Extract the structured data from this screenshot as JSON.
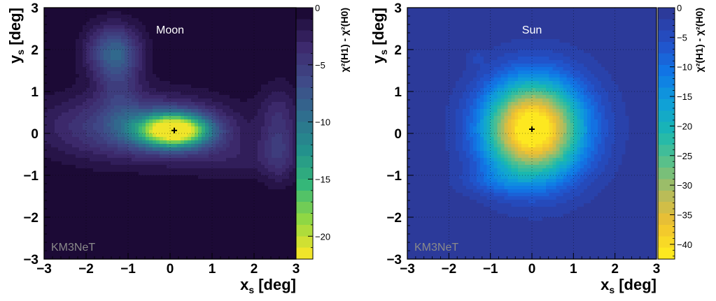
{
  "chart_data": [
    {
      "type": "heatmap",
      "title": "Moon",
      "watermark": "KM3NeT",
      "xlabel": "x",
      "xlabel_sub": "s",
      "xlabel_unit": "[deg]",
      "ylabel": "y",
      "ylabel_sub": "s",
      "ylabel_unit": "[deg]",
      "xlim": [
        -3,
        3
      ],
      "ylim": [
        -3,
        3
      ],
      "xticks": [
        "−3",
        "−2",
        "−1",
        "0",
        "1",
        "2",
        "3"
      ],
      "yticks": [
        "−3",
        "−2",
        "−1",
        "0",
        "1",
        "2",
        "3"
      ],
      "grid": true,
      "z_label": "χ²(H1) - χ²(H0)",
      "zlim": [
        -22,
        0
      ],
      "z_ticks": [
        "0",
        "−5",
        "−10",
        "−15",
        "−20"
      ],
      "colormap": [
        "#1c0a36",
        "#3d2a6e",
        "#3f4a88",
        "#2f6e8e",
        "#23918c",
        "#35b779",
        "#8fd744",
        "#f0e52a"
      ],
      "marker": {
        "x": 0.1,
        "y": 0.07
      },
      "blobs": [
        {
          "x": 0.1,
          "y": 0.07,
          "sx": 0.6,
          "sy": 0.28,
          "amp": -22
        },
        {
          "x": -0.8,
          "y": 0.15,
          "sx": 1.5,
          "sy": 0.55,
          "amp": -7
        },
        {
          "x": -1.35,
          "y": 1.95,
          "sx": 0.45,
          "sy": 0.45,
          "amp": -8
        },
        {
          "x": -1.2,
          "y": 1.1,
          "sx": 0.35,
          "sy": 0.7,
          "amp": -3
        },
        {
          "x": 2.6,
          "y": -0.4,
          "sx": 0.3,
          "sy": 0.55,
          "amp": -4
        },
        {
          "x": 2.6,
          "y": 0.6,
          "sx": 0.35,
          "sy": 0.5,
          "amp": -2.5
        },
        {
          "x": 1.5,
          "y": -0.6,
          "sx": 0.9,
          "sy": 0.35,
          "amp": -2
        }
      ]
    },
    {
      "type": "heatmap",
      "title": "Sun",
      "watermark": "KM3NeT",
      "xlabel": "x",
      "xlabel_sub": "s",
      "xlabel_unit": "[deg]",
      "ylabel": "y",
      "ylabel_sub": "s",
      "ylabel_unit": "[deg]",
      "xlim": [
        -3,
        3
      ],
      "ylim": [
        -3,
        3
      ],
      "xticks": [
        "−3",
        "−2",
        "−1",
        "0",
        "1",
        "2",
        "3"
      ],
      "yticks": [
        "−3",
        "−2",
        "−1",
        "0",
        "1",
        "2",
        "3"
      ],
      "grid": true,
      "z_label": "χ²(H1) - χ²(H0)",
      "zlim": [
        -42.5,
        0
      ],
      "z_ticks": [
        "0",
        "−5",
        "−10",
        "−15",
        "−20",
        "−25",
        "−30",
        "−35",
        "−40"
      ],
      "colormap": [
        "#2c3a9a",
        "#2350c8",
        "#0f78e8",
        "#0fa0d8",
        "#1ab8b0",
        "#5cc088",
        "#b4bc5c",
        "#f0c030",
        "#fde820"
      ],
      "marker": {
        "x": 0.0,
        "y": 0.1
      },
      "blobs": [
        {
          "x": 0.0,
          "y": 0.1,
          "sx": 0.8,
          "sy": 0.8,
          "amp": -42
        },
        {
          "x": 0.3,
          "y": 0.15,
          "sx": 1.15,
          "sy": 1.1,
          "amp": -6
        },
        {
          "x": -0.9,
          "y": -1.15,
          "sx": 0.65,
          "sy": 0.22,
          "amp": -4
        },
        {
          "x": -1.35,
          "y": 1.8,
          "sx": 0.15,
          "sy": 0.12,
          "amp": -3
        }
      ]
    }
  ]
}
